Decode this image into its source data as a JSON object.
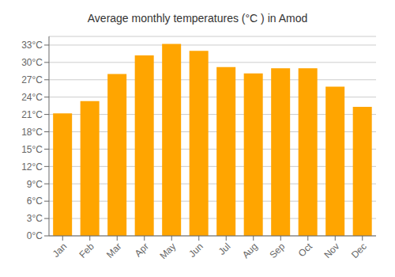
{
  "chart_data": {
    "type": "bar",
    "title": "Average monthly temperatures (°C ) in Amod",
    "categories": [
      "Jan",
      "Feb",
      "Mar",
      "Apr",
      "May",
      "Jun",
      "Jul",
      "Aug",
      "Sep",
      "Oct",
      "Nov",
      "Dec"
    ],
    "values": [
      21.2,
      23.3,
      28.0,
      31.2,
      33.2,
      32.0,
      29.2,
      28.1,
      29.0,
      29.0,
      25.8,
      22.3
    ],
    "color": "#FFA500",
    "ylim": [
      0,
      34.5
    ],
    "yticks": [
      {
        "value": 0,
        "label": "0°C"
      },
      {
        "value": 3,
        "label": "3°C"
      },
      {
        "value": 6,
        "label": "6°C"
      },
      {
        "value": 9,
        "label": "9°C"
      },
      {
        "value": 12,
        "label": "12°C"
      },
      {
        "value": 15,
        "label": "15°C"
      },
      {
        "value": 18,
        "label": "18°C"
      },
      {
        "value": 21,
        "label": "21°C"
      },
      {
        "value": 24,
        "label": "24°C"
      },
      {
        "value": 27,
        "label": "27°C"
      },
      {
        "value": 30,
        "label": "30°C"
      },
      {
        "value": 33,
        "label": "33°C"
      }
    ],
    "grid": true
  }
}
